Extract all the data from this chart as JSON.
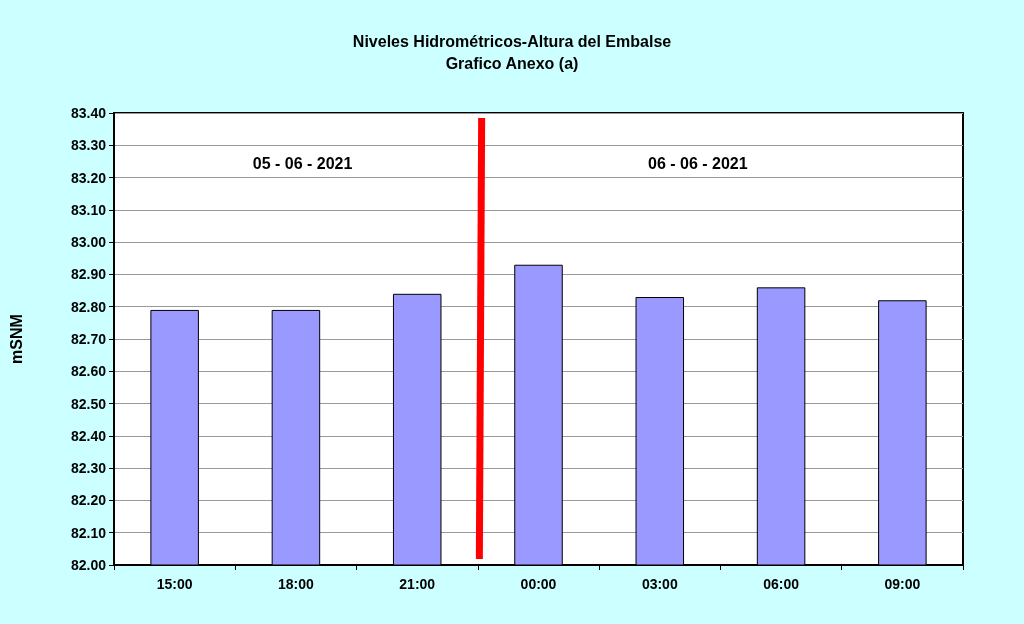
{
  "chart_data": {
    "type": "bar",
    "title": "Niveles Hidrométricos-Altura del Embalse",
    "subtitle": "Grafico Anexo (a)",
    "ylabel": "mSNM",
    "categories": [
      "15:00",
      "18:00",
      "21:00",
      "00:00",
      "03:00",
      "06:00",
      "09:00"
    ],
    "values": [
      82.79,
      82.79,
      82.84,
      82.93,
      82.83,
      82.86,
      82.82
    ],
    "color": "#9999ff",
    "ylim": [
      82.0,
      83.4
    ],
    "yticks": [
      {
        "value": 82.0,
        "label": "82.00"
      },
      {
        "value": 82.1,
        "label": "82.10"
      },
      {
        "value": 82.2,
        "label": "82.20"
      },
      {
        "value": 82.3,
        "label": "82.30"
      },
      {
        "value": 82.4,
        "label": "82.40"
      },
      {
        "value": 82.5,
        "label": "82.50"
      },
      {
        "value": 82.6,
        "label": "82.60"
      },
      {
        "value": 82.7,
        "label": "82.70"
      },
      {
        "value": 82.8,
        "label": "82.80"
      },
      {
        "value": 82.9,
        "label": "82.90"
      },
      {
        "value": 83.0,
        "label": "83.00"
      },
      {
        "value": 83.1,
        "label": "83.10"
      },
      {
        "value": 83.2,
        "label": "83.20"
      },
      {
        "value": 83.3,
        "label": "83.30"
      },
      {
        "value": 83.4,
        "label": "83.40"
      }
    ],
    "grid": "y",
    "annotations": [
      "05 - 06 - 2021",
      "06 - 06 - 2021"
    ]
  }
}
